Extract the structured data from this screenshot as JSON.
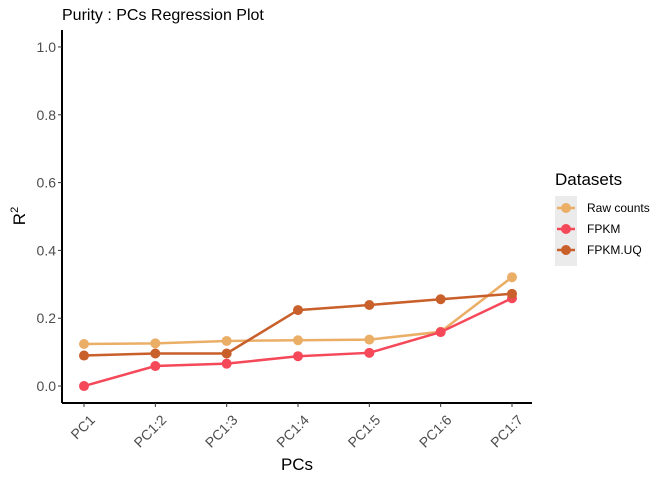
{
  "chart_data": {
    "type": "line",
    "title": "Purity : PCs Regression Plot",
    "xlabel": "PCs",
    "ylabel": "R",
    "ylabel_superscript": "2",
    "categories": [
      "PC1",
      "PC1:2",
      "PC1:3",
      "PC1:4",
      "PC1:5",
      "PC1:6",
      "PC1:7"
    ],
    "ylim": [
      -0.05,
      1.05
    ],
    "yticks": [
      "0.0",
      "0.2",
      "0.4",
      "0.6",
      "0.8",
      "1.0"
    ],
    "grid": false,
    "legend_title": "Datasets",
    "legend_position": "right",
    "series": [
      {
        "name": "Raw counts",
        "color": "#EBAE67",
        "values": [
          0.124,
          0.126,
          0.133,
          0.135,
          0.137,
          0.16,
          0.321
        ]
      },
      {
        "name": "FPKM",
        "color": "#F5495A",
        "values": [
          0.0,
          0.059,
          0.066,
          0.088,
          0.098,
          0.159,
          0.259
        ]
      },
      {
        "name": "FPKM.UQ",
        "color": "#C95F2A",
        "values": [
          0.09,
          0.096,
          0.096,
          0.224,
          0.239,
          0.256,
          0.272
        ]
      }
    ]
  }
}
